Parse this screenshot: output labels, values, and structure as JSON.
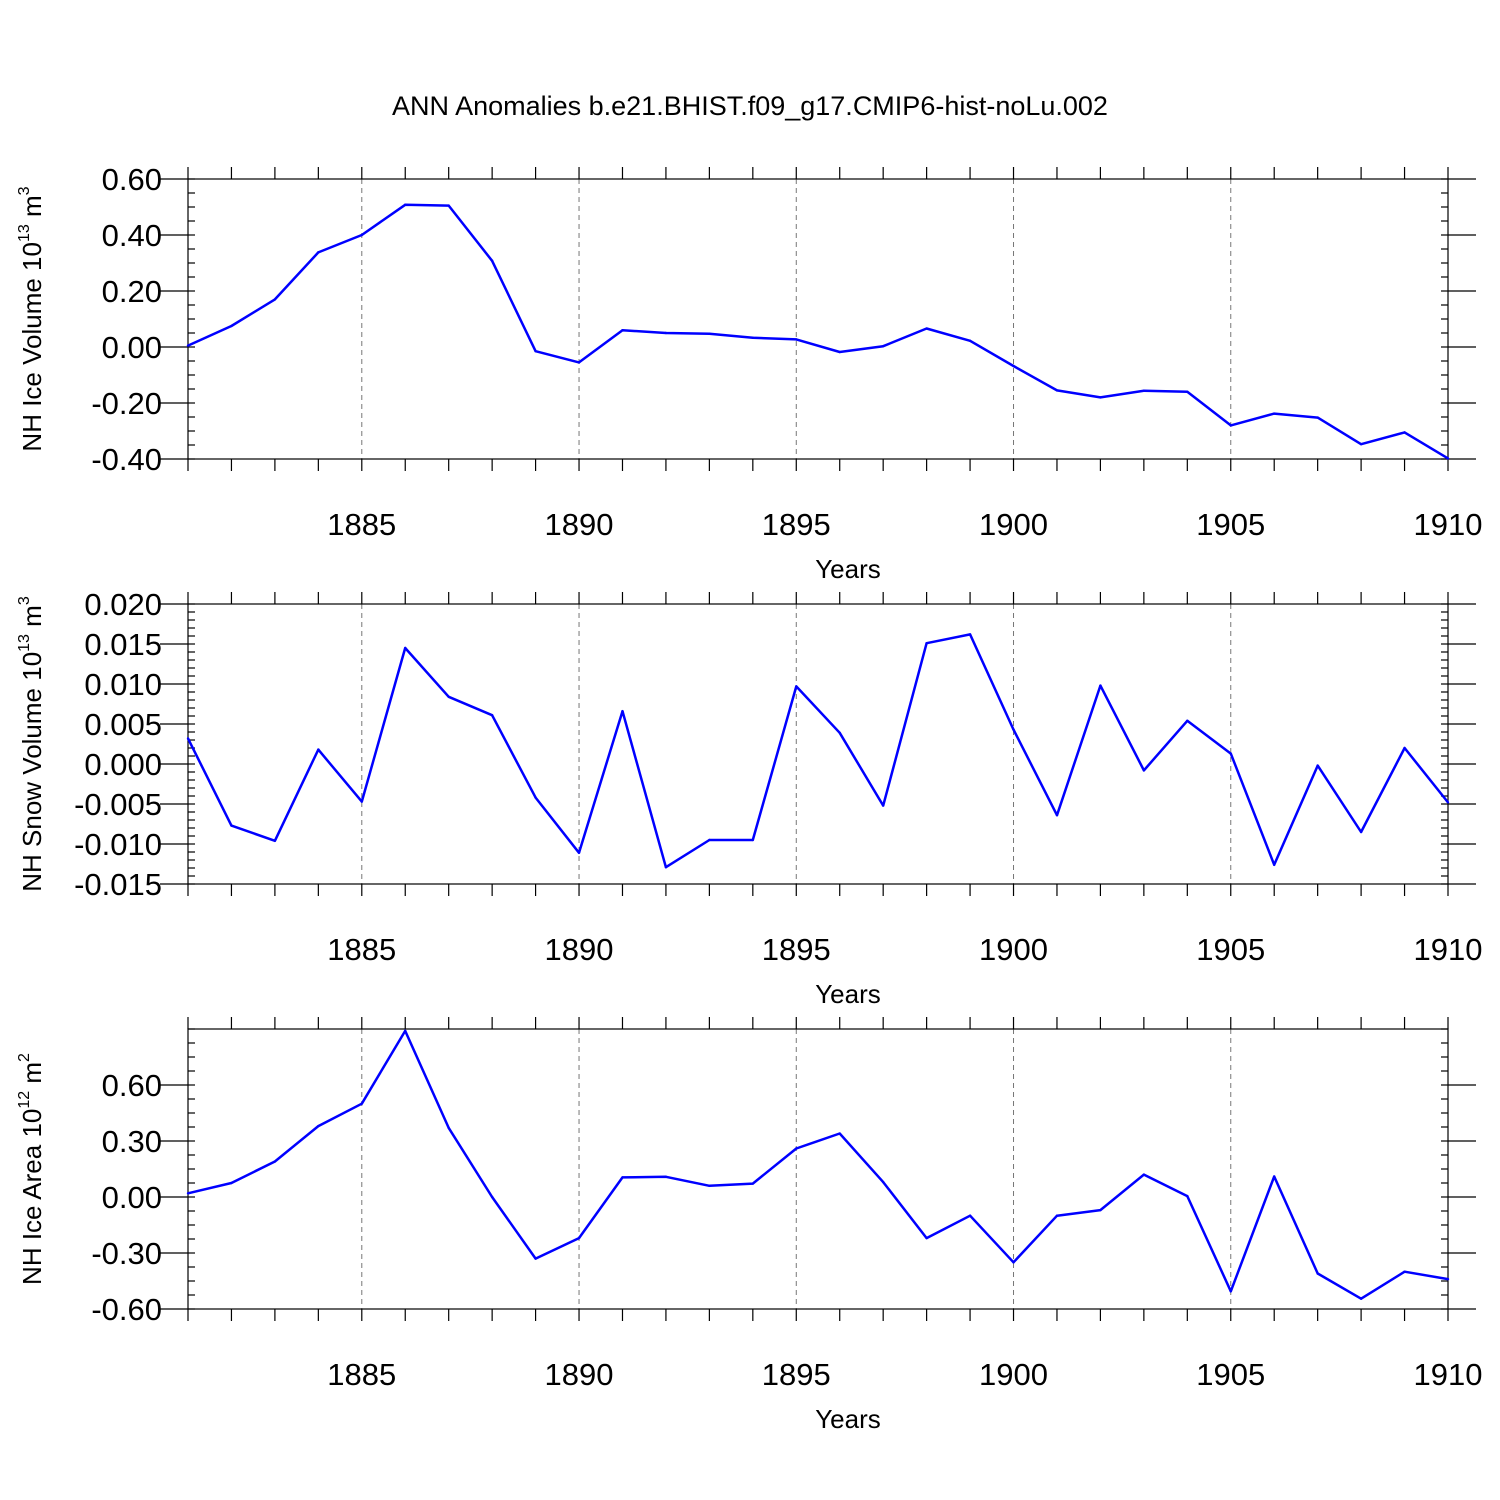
{
  "chart_data": {
    "title": "ANN Anomalies b.e21.BHIST.f09_g17.CMIP6-hist-noLu.002",
    "line_color": "#0000ff",
    "years": [
      1881,
      1882,
      1883,
      1884,
      1885,
      1886,
      1887,
      1888,
      1889,
      1890,
      1891,
      1892,
      1893,
      1894,
      1895,
      1896,
      1897,
      1898,
      1899,
      1900,
      1901,
      1902,
      1903,
      1904,
      1905,
      1906,
      1907,
      1908,
      1909,
      1910
    ],
    "xlim": [
      1881,
      1910
    ],
    "xticks": [
      "1885",
      "1890",
      "1895",
      "1900",
      "1905",
      "1910"
    ],
    "panels": [
      {
        "type": "line",
        "ylabel": {
          "main": "NH Ice Volume 10",
          "sup": "13",
          "tail": " m",
          "sup2": "3"
        },
        "xlabel": "Years",
        "ylim": [
          -0.4,
          0.6
        ],
        "yticks": [
          "0.60",
          "0.40",
          "0.20",
          "0.00",
          "-0.20",
          "-0.40"
        ],
        "ytick_values": [
          0.6,
          0.4,
          0.2,
          0.0,
          -0.2,
          -0.4
        ],
        "minor_step": 0.05,
        "values": [
          0.005,
          0.075,
          0.17,
          0.338,
          0.4,
          0.508,
          0.505,
          0.308,
          -0.015,
          -0.055,
          0.06,
          0.05,
          0.047,
          0.033,
          0.027,
          -0.018,
          0.003,
          0.066,
          0.022,
          -0.068,
          -0.155,
          -0.18,
          -0.156,
          -0.16,
          -0.28,
          -0.238,
          -0.252,
          -0.347,
          -0.305,
          -0.398
        ]
      },
      {
        "type": "line",
        "ylabel": {
          "main": "NH Snow Volume 10",
          "sup": "13",
          "tail": " m",
          "sup2": "3"
        },
        "xlabel": "Years",
        "ylim": [
          -0.015,
          0.02
        ],
        "yticks": [
          "0.020",
          "0.015",
          "0.010",
          "0.005",
          "0.000",
          "-0.005",
          "-0.010",
          "-0.015"
        ],
        "ytick_values": [
          0.02,
          0.015,
          0.01,
          0.005,
          0.0,
          -0.005,
          -0.01,
          -0.015
        ],
        "minor_step": 0.001,
        "values": [
          0.0032,
          -0.0077,
          -0.0096,
          0.0018,
          -0.0047,
          0.0145,
          0.0084,
          0.0061,
          -0.0042,
          -0.0111,
          0.0066,
          -0.0129,
          -0.0095,
          -0.0095,
          0.0097,
          0.0039,
          -0.0052,
          0.0151,
          0.0162,
          0.0043,
          -0.0064,
          0.0098,
          -0.0008,
          0.0054,
          0.0013,
          -0.0126,
          -0.0002,
          -0.0085,
          0.002,
          -0.0048
        ]
      },
      {
        "type": "line",
        "ylabel": {
          "main": "NH Ice Area 10",
          "sup": "12",
          "tail": " m",
          "sup2": "2"
        },
        "xlabel": "Years",
        "ylim": [
          -0.6,
          0.9
        ],
        "yticks": [
          "0.60",
          "0.30",
          "0.00",
          "-0.30",
          "-0.60"
        ],
        "ytick_values": [
          0.6,
          0.3,
          0.0,
          -0.3,
          -0.6
        ],
        "minor_step": 0.075,
        "values": [
          0.02,
          0.075,
          0.19,
          0.38,
          0.5,
          0.89,
          0.37,
          0.0,
          -0.33,
          -0.22,
          0.105,
          0.108,
          0.06,
          0.072,
          0.26,
          0.34,
          0.08,
          -0.22,
          -0.1,
          -0.35,
          -0.1,
          -0.07,
          0.12,
          0.005,
          -0.505,
          0.11,
          -0.41,
          -0.545,
          -0.4,
          -0.44
        ]
      }
    ]
  }
}
